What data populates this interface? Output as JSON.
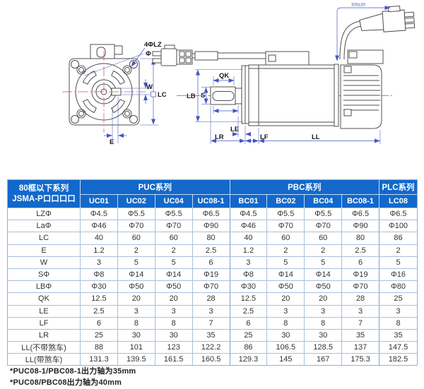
{
  "page": {
    "background": "#ffffff",
    "accent_blue": "#1269cb"
  },
  "drawing": {
    "front_labels": {
      "bolt_holes": "4ΦLZ",
      "flange_diameter": "Φ La",
      "key_width": "W",
      "flange_size": "LC",
      "offset": "E"
    },
    "side_labels": {
      "key_length": "QK",
      "pilot_diameter": "LB",
      "shaft_diameter": "S",
      "step": "LE",
      "shaft_length": "LR",
      "flange_thickness": "LF",
      "body_length": "LL"
    },
    "cable_length_dim": "300±30",
    "colors": {
      "outline": "#4f4f4f",
      "dimension_blue": "#4456c4",
      "centerline_red": "#cc5252"
    }
  },
  "table": {
    "corner": {
      "line1": "80框以下系列",
      "line2": "JSMA-P口口口口"
    },
    "groups": [
      {
        "label": "PUC系列",
        "span": 4
      },
      {
        "label": "PBC系列",
        "span": 4
      },
      {
        "label": "PLC系列",
        "span": 1
      }
    ],
    "columns": [
      "UC01",
      "UC02",
      "UC04",
      "UC08-1",
      "BC01",
      "BC02",
      "BC04",
      "BC08-1",
      "LC08"
    ],
    "rows": [
      {
        "label": "LZΦ",
        "values": [
          "Φ4.5",
          "Φ5.5",
          "Φ5.5",
          "Φ6.5",
          "Φ4.5",
          "Φ5.5",
          "Φ5.5",
          "Φ6.5",
          "Φ6.5"
        ]
      },
      {
        "label": "LaΦ",
        "values": [
          "Φ46",
          "Φ70",
          "Φ70",
          "Φ90",
          "Φ46",
          "Φ70",
          "Φ70",
          "Φ90",
          "Φ100"
        ]
      },
      {
        "label": "LC",
        "values": [
          "40",
          "60",
          "60",
          "80",
          "40",
          "60",
          "60",
          "80",
          "86"
        ]
      },
      {
        "label": "E",
        "values": [
          "1.2",
          "2",
          "2",
          "2.5",
          "1.2",
          "2",
          "2",
          "2.5",
          "2"
        ]
      },
      {
        "label": "W",
        "values": [
          "3",
          "5",
          "5",
          "6",
          "3",
          "5",
          "5",
          "6",
          "5"
        ]
      },
      {
        "label": "SΦ",
        "values": [
          "Φ8",
          "Φ14",
          "Φ14",
          "Φ19",
          "Φ8",
          "Φ14",
          "Φ14",
          "Φ19",
          "Φ16"
        ]
      },
      {
        "label": "LBΦ",
        "values": [
          "Φ30",
          "Φ50",
          "Φ50",
          "Φ70",
          "Φ30",
          "Φ50",
          "Φ50",
          "Φ70",
          "Φ80"
        ]
      },
      {
        "label": "QK",
        "values": [
          "12.5",
          "20",
          "20",
          "28",
          "12.5",
          "20",
          "20",
          "28",
          "25"
        ]
      },
      {
        "label": "LE",
        "values": [
          "2.5",
          "3",
          "3",
          "3",
          "2.5",
          "3",
          "3",
          "3",
          "3"
        ]
      },
      {
        "label": "LF",
        "values": [
          "6",
          "8",
          "8",
          "7",
          "6",
          "8",
          "8",
          "7",
          "8"
        ]
      },
      {
        "label": "LR",
        "values": [
          "25",
          "30",
          "30",
          "35",
          "25",
          "30",
          "30",
          "35",
          "35"
        ]
      },
      {
        "label": "LL(不带煞车)",
        "values": [
          "88",
          "101",
          "123",
          "122.2",
          "86",
          "106.5",
          "128.5",
          "137",
          "147.5"
        ]
      },
      {
        "label": "LL(带煞车)",
        "values": [
          "131.3",
          "139.5",
          "161.5",
          "160.5",
          "129.3",
          "145",
          "167",
          "175.3",
          "182.5"
        ]
      }
    ],
    "colors": {
      "header_bg": "#1269cb",
      "header_text": "#ffffff",
      "grid": "#a9c0de",
      "body_text": "#333333"
    }
  },
  "footnotes": [
    "*PUC08-1/PBC08-1出力轴为35mm",
    "*PUC08/PBC08出力轴为40mm"
  ]
}
